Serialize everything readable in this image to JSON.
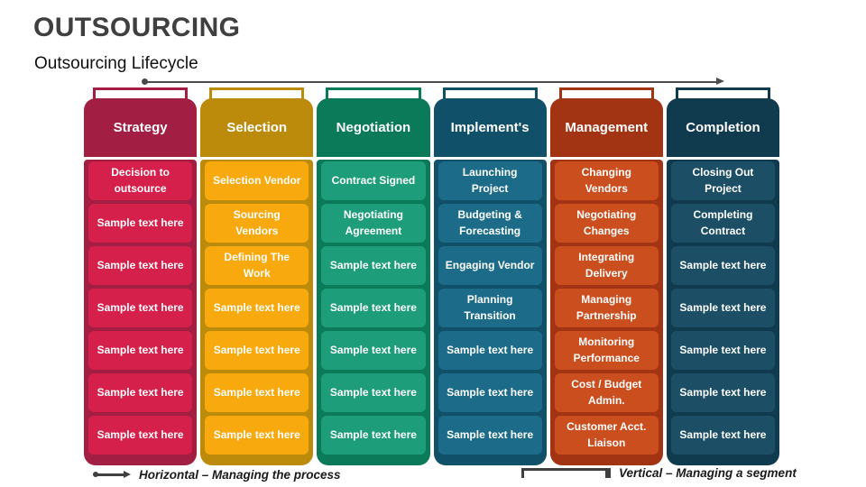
{
  "slide": {
    "title": "OUTSOURCING",
    "subtitle": "Outsourcing Lifecycle",
    "legend_horizontal": "Horizontal – Managing the process",
    "legend_vertical": "Vertical – Managing a segment"
  },
  "arrow_color": "#4a4a4a",
  "columns": [
    {
      "label": "Strategy",
      "header_color": "#A21E42",
      "cell_color": "#D5204C",
      "cells": [
        "Decision to outsource",
        "Sample text here",
        "Sample text here",
        "Sample text here",
        "Sample text here",
        "Sample text here",
        "Sample text here"
      ]
    },
    {
      "label": "Selection",
      "header_color": "#BD8B0B",
      "cell_color": "#F8A90D",
      "cells": [
        "Selection Vendor",
        "Sourcing Vendors",
        "Defining The Work",
        "Sample text here",
        "Sample text here",
        "Sample text here",
        "Sample text here"
      ]
    },
    {
      "label": "Negotiation",
      "header_color": "#0A7A59",
      "cell_color": "#1E9D7A",
      "cells": [
        "Contract Signed",
        "Negotiating Agreement",
        "Sample text here",
        "Sample text here",
        "Sample text here",
        "Sample text here",
        "Sample text here"
      ]
    },
    {
      "label": "Implement's",
      "header_color": "#115069",
      "cell_color": "#1C6C89",
      "cells": [
        "Launching Project",
        "Budgeting & Forecasting",
        "Engaging Vendor",
        "Planning Transition",
        "Sample text here",
        "Sample text here",
        "Sample text here"
      ]
    },
    {
      "label": "Management",
      "header_color": "#A23413",
      "cell_color": "#CB4E1E",
      "cells": [
        "Changing Vendors",
        "Negotiating Changes",
        "Integrating Delivery",
        "Managing Partnership",
        "Monitoring Performance",
        "Cost / Budget Admin.",
        "Customer Acct. Liaison"
      ]
    },
    {
      "label": "Completion",
      "header_color": "#103B4E",
      "cell_color": "#1C4F66",
      "cells": [
        "Closing Out Project",
        "Completing Contract",
        "Sample text here",
        "Sample text here",
        "Sample text here",
        "Sample text here",
        "Sample text here"
      ]
    }
  ]
}
